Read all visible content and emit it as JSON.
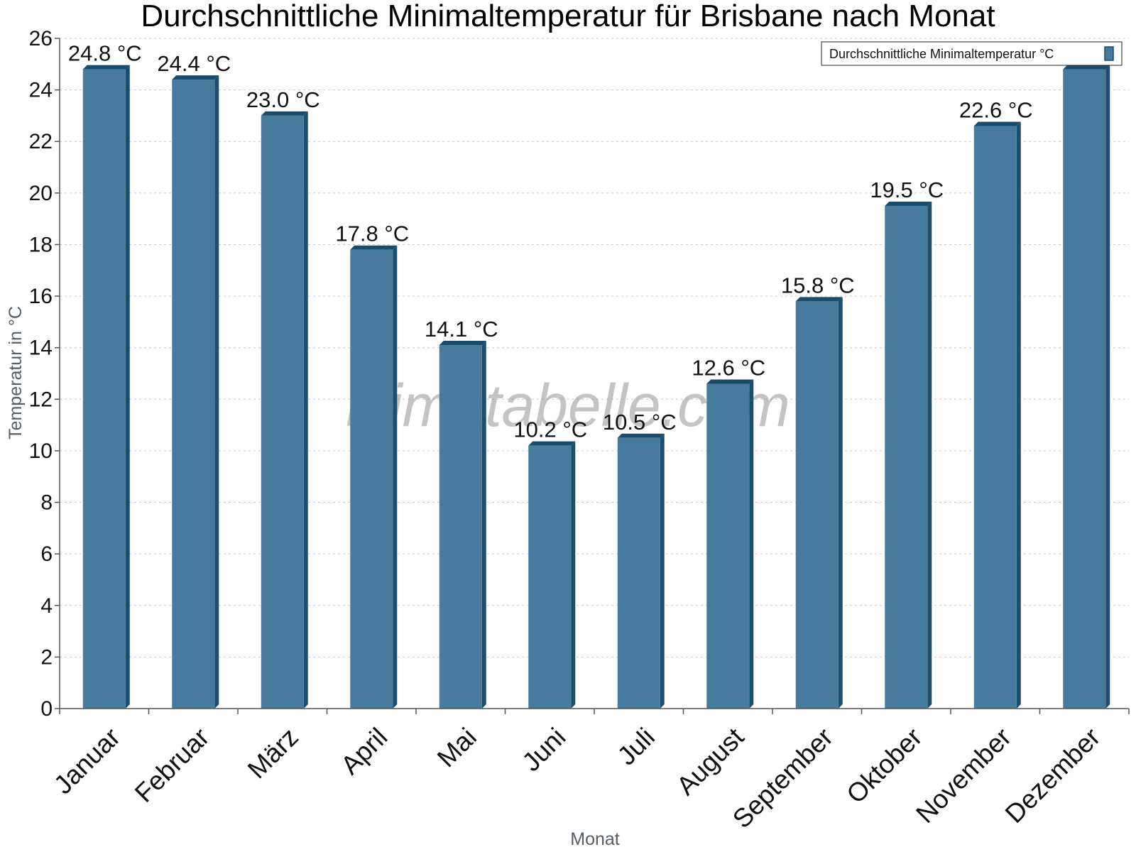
{
  "chart_data": {
    "type": "bar",
    "title": "Durchschnittliche Minimaltemperatur für Brisbane nach Monat",
    "xlabel": "Monat",
    "ylabel": "Temperatur in °C",
    "ylim": [
      0,
      26
    ],
    "yticks": [
      0,
      2,
      4,
      6,
      8,
      10,
      12,
      14,
      16,
      18,
      20,
      22,
      24,
      26
    ],
    "grid": true,
    "legend_position": "top-right",
    "categories": [
      "Januar",
      "Februar",
      "März",
      "April",
      "Mai",
      "Juni",
      "Juli",
      "August",
      "September",
      "Oktober",
      "November",
      "Dezember"
    ],
    "series": [
      {
        "name": "Durchschnittliche Minimaltemperatur °C",
        "color": "#467b9d",
        "values": [
          24.8,
          24.4,
          23.0,
          17.8,
          14.1,
          10.2,
          10.5,
          12.6,
          15.8,
          19.5,
          22.6,
          24.8
        ]
      }
    ],
    "data_labels": [
      "24.8 °C",
      "24.4 °C",
      "23.0 °C",
      "17.8 °C",
      "14.1 °C",
      "10.2 °C",
      "10.5 °C",
      "12.6 °C",
      "15.8 °C",
      "19.5 °C",
      "22.6 °C",
      ""
    ]
  },
  "watermark": "klimatabelle.com",
  "colors": {
    "bar_front": "#467b9d",
    "bar_side": "#1d4e6d",
    "bar_top": "#1b4b6b",
    "grid": "#c8c8c8",
    "axis": "#555555"
  }
}
